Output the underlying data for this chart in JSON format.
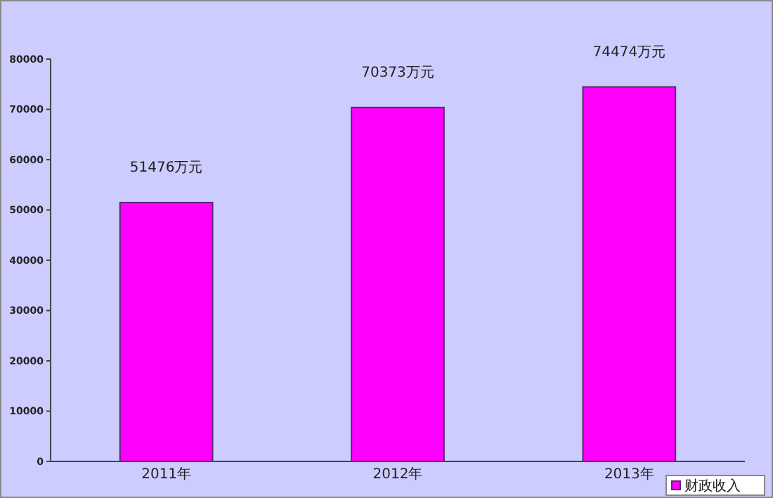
{
  "chart_data": {
    "type": "bar",
    "categories": [
      "2011年",
      "2012年",
      "2013年"
    ],
    "series": [
      {
        "name": "财政收入",
        "color": "#ff00ff",
        "values": [
          51476,
          70373,
          74474
        ],
        "value_labels": [
          "51476万元",
          "70373万元",
          "74474万元"
        ]
      }
    ],
    "ylim": [
      0,
      80000
    ],
    "yticks": [
      0,
      10000,
      20000,
      30000,
      40000,
      50000,
      60000,
      70000,
      80000
    ],
    "grid": false,
    "legend": "bottom right"
  }
}
